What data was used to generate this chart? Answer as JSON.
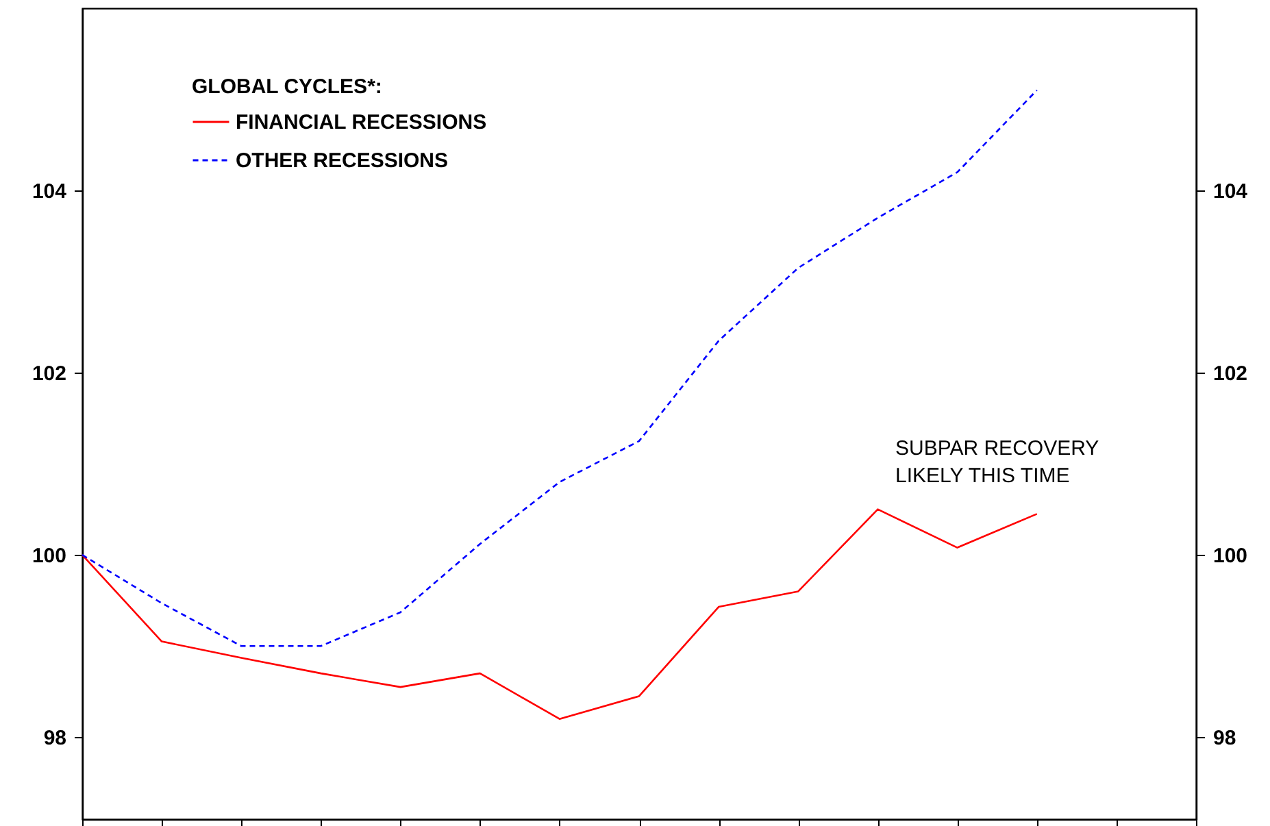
{
  "chart_data": {
    "type": "line",
    "legend_title": "GLOBAL CYCLES*:",
    "legend": "top left",
    "grid": false,
    "marker": "none",
    "categories": [
      null,
      null,
      null,
      null,
      null,
      null,
      null,
      null,
      null,
      null,
      null,
      null,
      null,
      null,
      null
    ],
    "series": [
      {
        "name": "FINANCIAL RECESSIONS",
        "color": "#ff0000",
        "line_style": "solid",
        "values": [
          100,
          99.05,
          98.87,
          98.7,
          98.55,
          98.7,
          98.2,
          98.45,
          99.43,
          99.6,
          100.5,
          100.08,
          100.45,
          null,
          null
        ]
      },
      {
        "name": "OTHER RECESSIONS",
        "color": "#0000ff",
        "line_style": "dashed",
        "values": [
          100,
          99.47,
          99.0,
          99.0,
          99.37,
          100.12,
          100.8,
          101.25,
          102.35,
          103.15,
          103.7,
          104.2,
          105.1,
          null,
          null
        ]
      }
    ],
    "ylim": [
      97.1,
      106
    ],
    "yticks": [
      98,
      100,
      102,
      104
    ],
    "y2lim": [
      97.1,
      106
    ],
    "y2ticks": [
      98,
      100,
      102,
      104
    ],
    "annotations": [
      "SUBPAR RECOVERY LIKELY THIS TIME"
    ]
  }
}
